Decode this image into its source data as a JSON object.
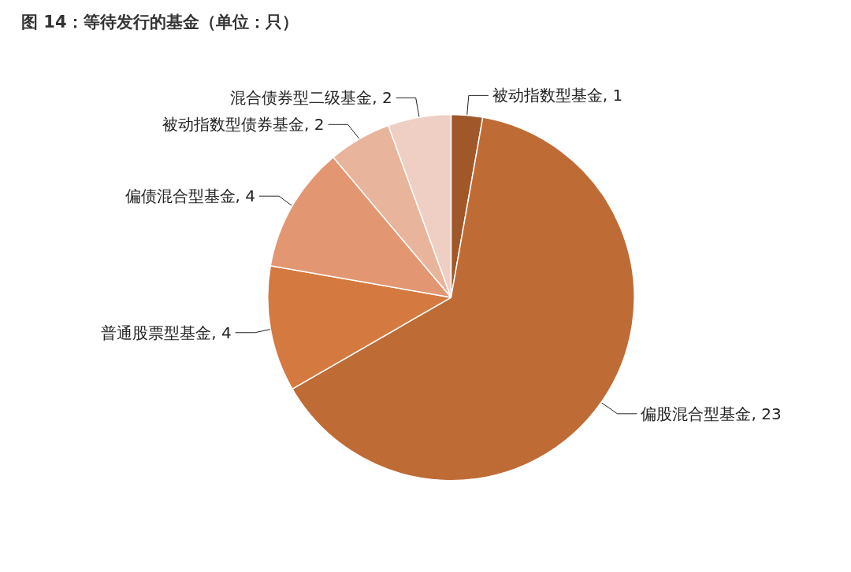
{
  "chart_data": {
    "type": "pie",
    "title": "图 14：等待发行的基金（单位：只）",
    "categories": [
      "被动指数型基金",
      "偏股混合型基金",
      "普通股票型基金",
      "偏债混合型基金",
      "被动指数型债券基金",
      "混合债券型二级基金"
    ],
    "values": [
      1,
      23,
      4,
      4,
      2,
      2
    ],
    "colors": [
      "#a0582a",
      "#bf6b36",
      "#d47a40",
      "#e29672",
      "#e9b49c",
      "#efcfc3"
    ],
    "value_labels": [
      ", 1",
      ", 23",
      ", 4",
      ", 4",
      ", 2",
      ", 2"
    ],
    "legend": false
  }
}
